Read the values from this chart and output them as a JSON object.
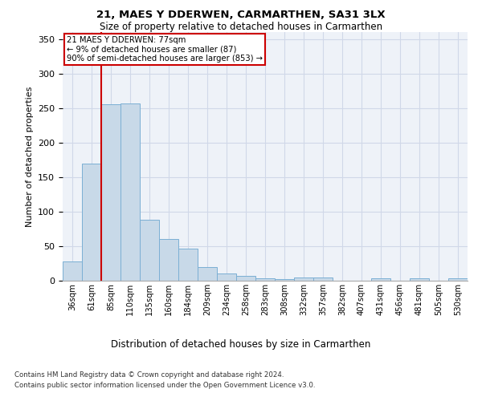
{
  "title1": "21, MAES Y DDERWEN, CARMARTHEN, SA31 3LX",
  "title2": "Size of property relative to detached houses in Carmarthen",
  "xlabel": "Distribution of detached houses by size in Carmarthen",
  "ylabel": "Number of detached properties",
  "bar_labels": [
    "36sqm",
    "61sqm",
    "85sqm",
    "110sqm",
    "135sqm",
    "160sqm",
    "184sqm",
    "209sqm",
    "234sqm",
    "258sqm",
    "283sqm",
    "308sqm",
    "332sqm",
    "357sqm",
    "382sqm",
    "407sqm",
    "431sqm",
    "456sqm",
    "481sqm",
    "505sqm",
    "530sqm"
  ],
  "bar_values": [
    28,
    170,
    255,
    257,
    88,
    60,
    46,
    20,
    10,
    7,
    3,
    2,
    5,
    5,
    0,
    0,
    4,
    0,
    3,
    0,
    3
  ],
  "bar_color": "#c8d9e8",
  "bar_edge_color": "#7bafd4",
  "grid_color": "#d0d8e8",
  "annotation_text_line1": "21 MAES Y DDERWEN: 77sqm",
  "annotation_text_line2": "← 9% of detached houses are smaller (87)",
  "annotation_text_line3": "90% of semi-detached houses are larger (853) →",
  "footer1": "Contains HM Land Registry data © Crown copyright and database right 2024.",
  "footer2": "Contains public sector information licensed under the Open Government Licence v3.0.",
  "ylim": [
    0,
    360
  ],
  "yticks": [
    0,
    50,
    100,
    150,
    200,
    250,
    300,
    350
  ],
  "red_line_color": "#cc0000",
  "bg_color": "#eef2f8"
}
